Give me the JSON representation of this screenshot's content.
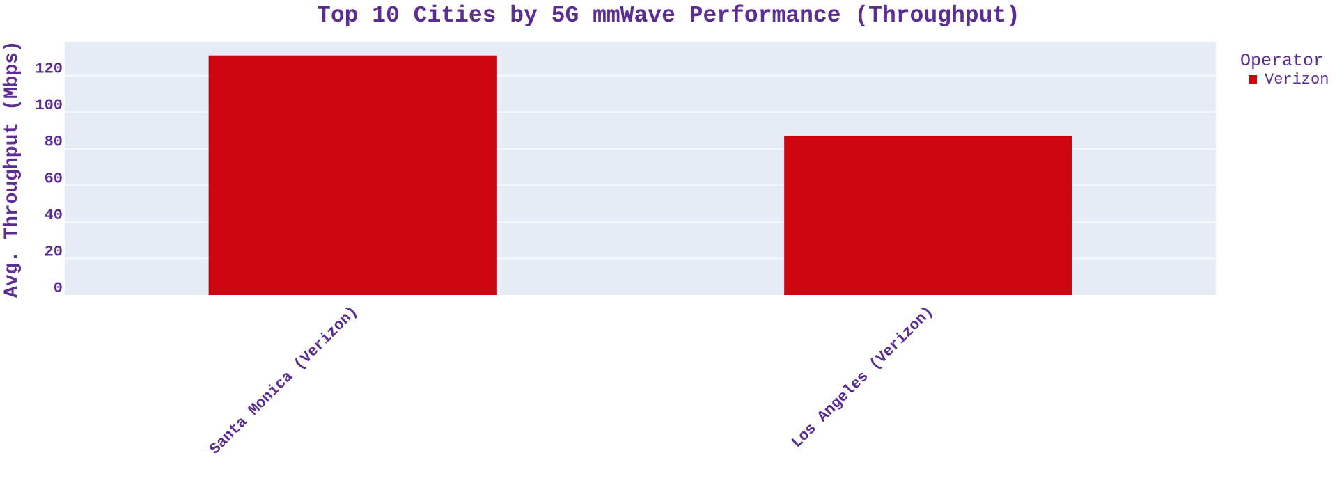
{
  "colors": {
    "text": "#5b2c91",
    "plot_bg": "#e5ecf6",
    "grid": "#ffffff",
    "bar": "#cc050f"
  },
  "chart_data": {
    "type": "bar",
    "title": "Top 10 Cities by 5G mmWave Performance (Throughput)",
    "xlabel": "",
    "ylabel": "Avg. Throughput (Mbps)",
    "categories": [
      "Santa Monica (Verizon)",
      "Los Angeles (Verizon)"
    ],
    "series": [
      {
        "name": "Verizon",
        "values": [
          131,
          87
        ]
      }
    ],
    "ylim": [
      0,
      138.5
    ],
    "yticks": [
      0,
      20,
      40,
      60,
      80,
      100,
      120
    ],
    "grid": true,
    "legend": {
      "title": "Operator",
      "position": "top-right"
    }
  }
}
